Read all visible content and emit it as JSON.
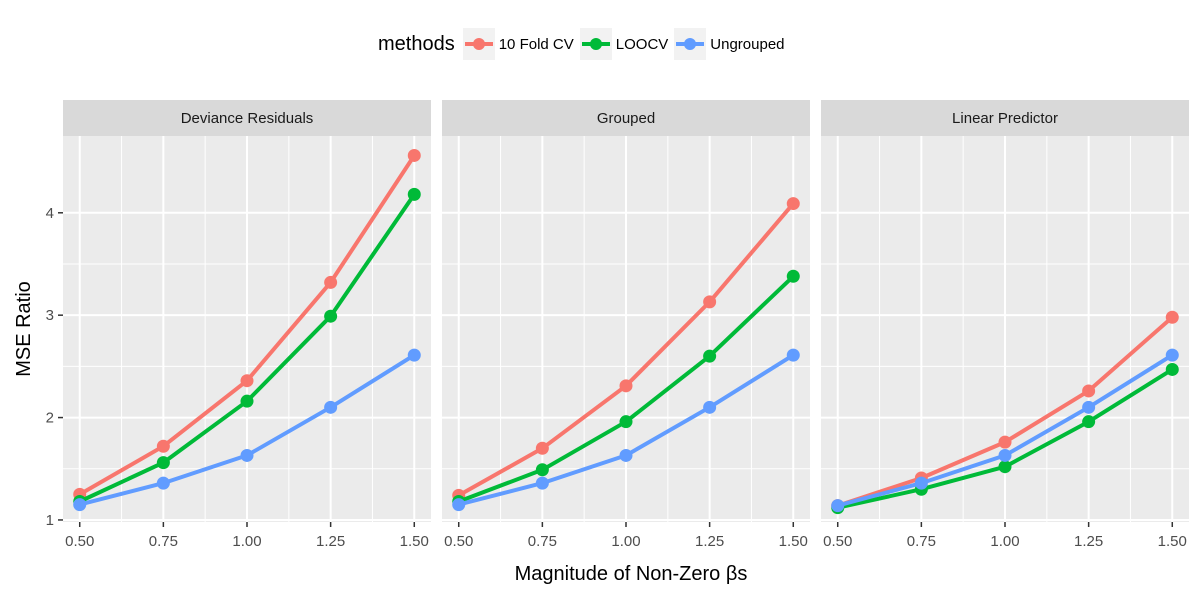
{
  "legend": {
    "title": "methods"
  },
  "chart_data": {
    "type": "line",
    "xlabel": "Magnitude of Non-Zero βs",
    "ylabel": "MSE Ratio",
    "x": [
      0.5,
      0.75,
      1.0,
      1.25,
      1.5
    ],
    "xtick_labels": [
      "0.50",
      "0.75",
      "1.00",
      "1.25",
      "1.50"
    ],
    "yticks": [
      1,
      2,
      3,
      4
    ],
    "ytick_labels": [
      "1",
      "2",
      "3",
      "4"
    ],
    "xlim": [
      0.45,
      1.55
    ],
    "ylim": [
      0.98,
      4.75
    ],
    "grid": true,
    "legend_position": "top",
    "series_meta": [
      {
        "name": "10 Fold CV",
        "color": "#F8766D"
      },
      {
        "name": "LOOCV",
        "color": "#00BA38"
      },
      {
        "name": "Ungrouped",
        "color": "#619CFF"
      }
    ],
    "panels": [
      {
        "title": "Deviance Residuals",
        "series": [
          {
            "name": "10 Fold CV",
            "values": [
              1.25,
              1.72,
              2.36,
              3.32,
              4.56
            ]
          },
          {
            "name": "LOOCV",
            "values": [
              1.18,
              1.56,
              2.16,
              2.99,
              4.18
            ]
          },
          {
            "name": "Ungrouped",
            "values": [
              1.15,
              1.36,
              1.63,
              2.1,
              2.61
            ]
          }
        ]
      },
      {
        "title": "Grouped",
        "series": [
          {
            "name": "10 Fold CV",
            "values": [
              1.24,
              1.7,
              2.31,
              3.13,
              4.09
            ]
          },
          {
            "name": "LOOCV",
            "values": [
              1.18,
              1.49,
              1.96,
              2.6,
              3.38
            ]
          },
          {
            "name": "Ungrouped",
            "values": [
              1.15,
              1.36,
              1.63,
              2.1,
              2.61
            ]
          }
        ]
      },
      {
        "title": "Linear Predictor",
        "series": [
          {
            "name": "10 Fold CV",
            "values": [
              1.14,
              1.41,
              1.76,
              2.26,
              2.98
            ]
          },
          {
            "name": "LOOCV",
            "values": [
              1.12,
              1.3,
              1.52,
              1.96,
              2.47
            ]
          },
          {
            "name": "Ungrouped",
            "values": [
              1.14,
              1.36,
              1.63,
              2.1,
              2.61
            ]
          }
        ]
      }
    ]
  }
}
